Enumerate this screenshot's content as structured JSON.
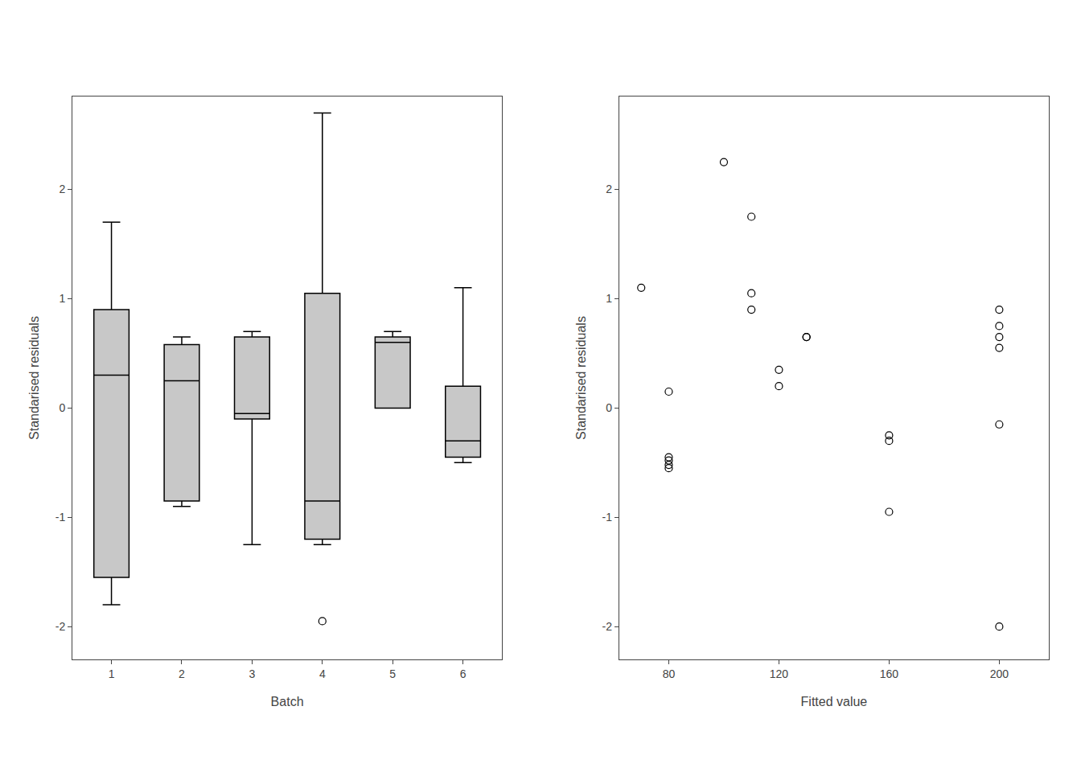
{
  "chart_data": [
    {
      "type": "box",
      "xlabel": "Batch",
      "ylabel": "Standarised residuals",
      "categories": [
        "1",
        "2",
        "3",
        "4",
        "5",
        "6"
      ],
      "box_stats": [
        {
          "med": 0.3,
          "q1": -1.55,
          "q3": 0.9,
          "whislo": -1.8,
          "whishi": 1.7,
          "fliers": []
        },
        {
          "med": 0.25,
          "q1": -0.85,
          "q3": 0.58,
          "whislo": -0.9,
          "whishi": 0.65,
          "fliers": []
        },
        {
          "med": -0.05,
          "q1": -0.1,
          "q3": 0.65,
          "whislo": -1.25,
          "whishi": 0.7,
          "fliers": []
        },
        {
          "med": -0.85,
          "q1": -1.2,
          "q3": 1.05,
          "whislo": -1.25,
          "whishi": 2.7,
          "fliers": [
            -1.95
          ]
        },
        {
          "med": 0.6,
          "q1": 0.0,
          "q3": 0.65,
          "whislo": 0.0,
          "whishi": 0.7,
          "fliers": []
        },
        {
          "med": -0.3,
          "q1": -0.45,
          "q3": 0.2,
          "whislo": -0.5,
          "whishi": 1.1,
          "fliers": []
        }
      ],
      "color": "#c8c8c8",
      "ylim": [
        -2.3,
        2.85
      ],
      "yticks": [
        -2,
        -1,
        0,
        1,
        2
      ],
      "grid": false
    },
    {
      "type": "scatter",
      "xlabel": "Fitted value",
      "ylabel": "Standarised residuals",
      "x": [
        70,
        80,
        80,
        80,
        80,
        80,
        100,
        110,
        110,
        110,
        120,
        120,
        130,
        130,
        160,
        160,
        160,
        200,
        200,
        200,
        200,
        200,
        200
      ],
      "values": [
        1.1,
        0.15,
        -0.45,
        -0.48,
        -0.52,
        -0.55,
        2.25,
        1.75,
        1.05,
        0.9,
        0.35,
        0.2,
        0.65,
        0.65,
        -0.95,
        -0.25,
        -0.3,
        0.9,
        0.75,
        0.65,
        0.55,
        -0.15,
        -2.0
      ],
      "color": "#000000",
      "marker": "circle-open",
      "xlim": [
        62,
        218
      ],
      "xticks": [
        80,
        120,
        160,
        200
      ],
      "ylim": [
        -2.3,
        2.85
      ],
      "yticks": [
        -2,
        -1,
        0,
        1,
        2
      ],
      "grid": false
    }
  ]
}
